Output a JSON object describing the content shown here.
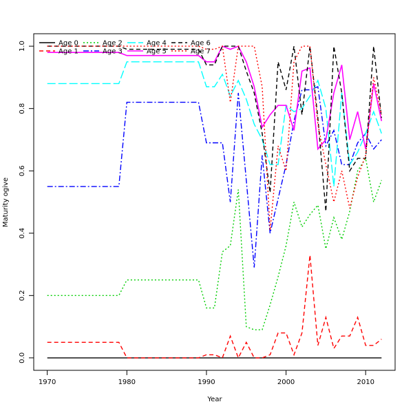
{
  "chart_data": {
    "type": "line",
    "title": "",
    "xlabel": "Year",
    "ylabel": "Maturity ogive",
    "xlim": [
      1968.3,
      2013.7
    ],
    "ylim": [
      -0.04,
      1.04
    ],
    "xticks": [
      1970,
      1980,
      1990,
      2000,
      2010
    ],
    "yticks": [
      0.0,
      0.2,
      0.4,
      0.6,
      0.8,
      1.0
    ],
    "xtick_labels": [
      "1970",
      "1980",
      "1990",
      "2000",
      "2010"
    ],
    "ytick_labels": [
      "0.0",
      "0.2",
      "0.4",
      "0.6",
      "0.8",
      "1.0"
    ],
    "grid": false,
    "legend_position": "top-left",
    "x": [
      1970,
      1971,
      1972,
      1973,
      1974,
      1975,
      1976,
      1977,
      1978,
      1979,
      1980,
      1981,
      1982,
      1983,
      1984,
      1985,
      1986,
      1987,
      1988,
      1989,
      1990,
      1991,
      1992,
      1993,
      1994,
      1995,
      1996,
      1997,
      1998,
      1999,
      2000,
      2001,
      2002,
      2003,
      2004,
      2005,
      2006,
      2007,
      2008,
      2009,
      2010,
      2011,
      2012
    ],
    "series": [
      {
        "name": "Age 0",
        "color": "#000000",
        "dash": "",
        "width": 1.4,
        "values": [
          0,
          0,
          0,
          0,
          0,
          0,
          0,
          0,
          0,
          0,
          0,
          0,
          0,
          0,
          0,
          0,
          0,
          0,
          0,
          0,
          0,
          0,
          0,
          0,
          0,
          0,
          0,
          0,
          0,
          0,
          0,
          0,
          0,
          0,
          0,
          0,
          0,
          0,
          0,
          0,
          0,
          0,
          0
        ]
      },
      {
        "name": "Age 1",
        "color": "#ff0000",
        "dash": "6,4",
        "width": 1.4,
        "values": [
          0.05,
          0.05,
          0.05,
          0.05,
          0.05,
          0.05,
          0.05,
          0.05,
          0.05,
          0.05,
          0.0,
          0.0,
          0.0,
          0.0,
          0.0,
          0.0,
          0.0,
          0.0,
          0.0,
          0.0,
          0.01,
          0.01,
          0.0,
          0.07,
          0.0,
          0.05,
          0.0,
          0.0,
          0.01,
          0.08,
          0.08,
          0.01,
          0.08,
          0.33,
          0.04,
          0.13,
          0.03,
          0.07,
          0.07,
          0.13,
          0.04,
          0.04,
          0.06
        ]
      },
      {
        "name": "Age 2",
        "color": "#00cd00",
        "dash": "2,3",
        "width": 1.4,
        "values": [
          0.2,
          0.2,
          0.2,
          0.2,
          0.2,
          0.2,
          0.2,
          0.2,
          0.2,
          0.2,
          0.25,
          0.25,
          0.25,
          0.25,
          0.25,
          0.25,
          0.25,
          0.25,
          0.25,
          0.25,
          0.16,
          0.16,
          0.34,
          0.36,
          0.54,
          0.1,
          0.09,
          0.09,
          0.17,
          0.26,
          0.36,
          0.5,
          0.42,
          0.46,
          0.49,
          0.35,
          0.45,
          0.38,
          0.47,
          0.6,
          0.64,
          0.5,
          0.57
        ]
      },
      {
        "name": "Age 3",
        "color": "#0000ff",
        "dash": "8,3,2,3",
        "width": 1.4,
        "values": [
          0.55,
          0.55,
          0.55,
          0.55,
          0.55,
          0.55,
          0.55,
          0.55,
          0.55,
          0.55,
          0.82,
          0.82,
          0.82,
          0.82,
          0.82,
          0.82,
          0.82,
          0.82,
          0.82,
          0.82,
          0.69,
          0.69,
          0.69,
          0.5,
          0.85,
          0.57,
          0.29,
          0.65,
          0.4,
          0.51,
          0.62,
          0.76,
          0.86,
          0.86,
          0.87,
          0.68,
          0.73,
          0.62,
          0.62,
          0.69,
          0.72,
          0.67,
          0.7
        ]
      },
      {
        "name": "Age 4",
        "color": "#00ffff",
        "dash": "12,4",
        "width": 1.4,
        "values": [
          0.88,
          0.88,
          0.88,
          0.88,
          0.88,
          0.88,
          0.88,
          0.88,
          0.88,
          0.88,
          0.95,
          0.95,
          0.95,
          0.95,
          0.95,
          0.95,
          0.95,
          0.95,
          0.95,
          0.95,
          0.87,
          0.87,
          0.91,
          0.84,
          0.89,
          0.83,
          0.75,
          0.7,
          0.62,
          0.62,
          0.81,
          0.79,
          0.8,
          0.84,
          0.89,
          0.8,
          0.55,
          0.85,
          0.62,
          0.66,
          0.72,
          0.79,
          0.72
        ]
      },
      {
        "name": "Age 5",
        "color": "#ff00ff",
        "dash": "",
        "width": 1.6,
        "values": [
          0.98,
          0.98,
          0.98,
          0.98,
          0.98,
          0.98,
          0.98,
          0.98,
          0.98,
          0.98,
          0.97,
          0.97,
          0.97,
          0.97,
          0.97,
          0.97,
          0.97,
          0.97,
          0.97,
          0.97,
          0.95,
          0.95,
          1.0,
          0.99,
          1.0,
          0.95,
          0.87,
          0.74,
          0.78,
          0.81,
          0.81,
          0.73,
          0.92,
          0.93,
          0.67,
          0.7,
          0.85,
          0.94,
          0.7,
          0.79,
          0.67,
          0.88,
          0.76
        ]
      },
      {
        "name": "Age 6",
        "color": "#000000",
        "dash": "6,4",
        "width": 1.4,
        "values": [
          1.0,
          1.0,
          1.0,
          1.0,
          1.0,
          1.0,
          1.0,
          1.0,
          1.0,
          1.0,
          0.99,
          0.99,
          0.99,
          0.99,
          0.99,
          0.99,
          0.99,
          0.99,
          0.99,
          0.99,
          0.94,
          0.94,
          1.0,
          1.0,
          1.0,
          0.92,
          0.85,
          0.72,
          0.53,
          0.95,
          0.86,
          1.0,
          0.78,
          1.0,
          0.77,
          0.47,
          1.0,
          0.85,
          0.6,
          0.64,
          0.64,
          1.0,
          0.77
        ]
      },
      {
        "name": "Age 7",
        "color": "#ff0000",
        "dash": "2,3",
        "width": 1.4,
        "values": [
          1.0,
          1.0,
          1.0,
          1.0,
          1.0,
          1.0,
          1.0,
          1.0,
          1.0,
          1.0,
          1.0,
          1.0,
          1.0,
          1.0,
          1.0,
          1.0,
          1.0,
          1.0,
          1.0,
          1.0,
          0.99,
          0.99,
          1.0,
          0.82,
          1.0,
          1.0,
          1.0,
          0.87,
          0.41,
          0.68,
          0.6,
          0.95,
          1.0,
          1.0,
          0.75,
          0.62,
          0.5,
          0.6,
          0.48,
          0.58,
          0.65,
          0.9,
          0.78
        ]
      }
    ]
  }
}
